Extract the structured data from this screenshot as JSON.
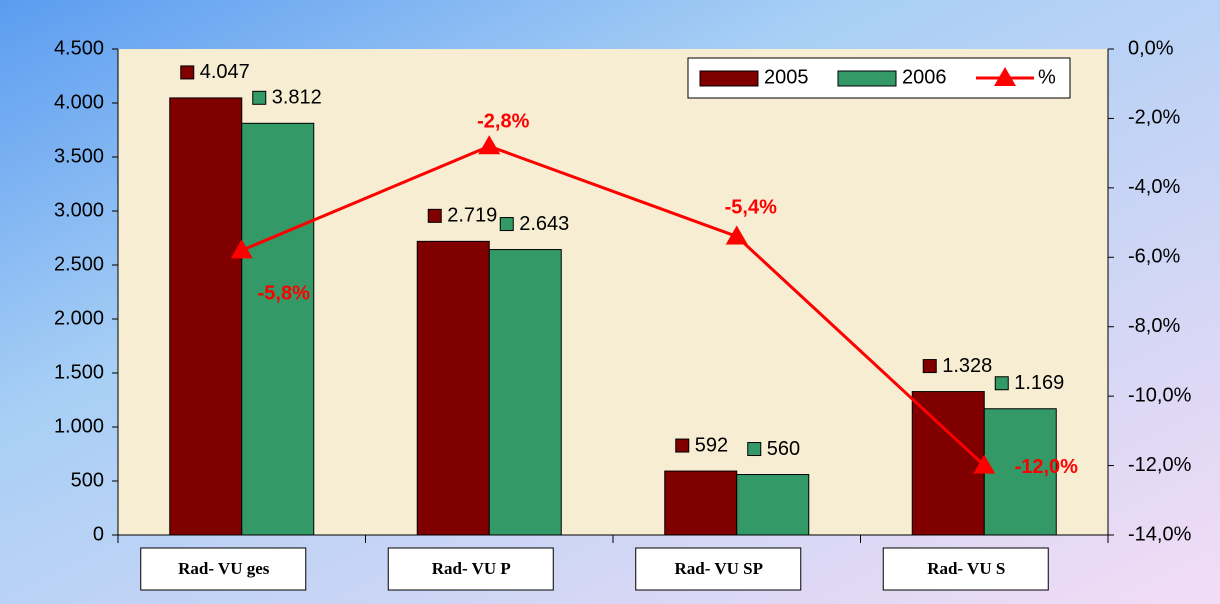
{
  "chart_data": {
    "type": "bar_line",
    "categories": [
      "Rad- VU ges",
      "Rad- VU P",
      "Rad- VU SP",
      "Rad- VU S"
    ],
    "series": [
      {
        "name": "2005",
        "color": "#800000",
        "values": [
          4047,
          2719,
          592,
          1328
        ],
        "value_labels": [
          "4.047",
          "2.719",
          "592",
          "1.328"
        ]
      },
      {
        "name": "2006",
        "color": "#339966",
        "values": [
          3812,
          2643,
          560,
          1169
        ],
        "value_labels": [
          "3.812",
          "2.643",
          "560",
          "1.169"
        ]
      },
      {
        "name": "%",
        "color": "#ff0000",
        "axis": "y2",
        "type": "line",
        "values": [
          -5.8,
          -2.8,
          -5.4,
          -12.0
        ],
        "value_labels": [
          "-5,8%",
          "-2,8%",
          "-5,4%",
          "-12,0%"
        ]
      }
    ],
    "ylim": [
      0,
      4500
    ],
    "yticks": [
      0,
      500,
      {
        "value": 1000,
        "label": "1.000"
      },
      {
        "value": 1500,
        "label": "1.500"
      },
      {
        "value": 2000,
        "label": "2.000"
      },
      {
        "value": 2500,
        "label": "2.500"
      },
      {
        "value": 3000,
        "label": "3.000"
      },
      {
        "value": 3500,
        "label": "3.500"
      },
      {
        "value": 4000,
        "label": "4.000"
      },
      {
        "value": 4500,
        "label": "4.500"
      }
    ],
    "y2lim": [
      -14,
      0
    ],
    "y2ticks": [
      {
        "value": -14,
        "label": "-14,0%"
      },
      {
        "value": -12,
        "label": "-12,0%"
      },
      {
        "value": -10,
        "label": "-10,0%"
      },
      {
        "value": -8,
        "label": "-8,0%"
      },
      {
        "value": -6,
        "label": "-6,0%"
      },
      {
        "value": -4,
        "label": "-4,0%"
      },
      {
        "value": -2,
        "label": "-2,0%"
      },
      {
        "value": 0,
        "label": "0,0%"
      }
    ],
    "legend": "top-right"
  }
}
